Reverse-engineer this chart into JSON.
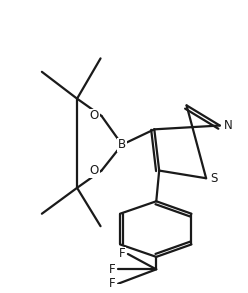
{
  "bg_color": "#ffffff",
  "line_color": "#1a1a1a",
  "line_width": 1.6,
  "figsize": [
    2.48,
    2.93
  ],
  "dpi": 100,
  "xlim": [
    0,
    1
  ],
  "ylim": [
    0,
    1
  ]
}
